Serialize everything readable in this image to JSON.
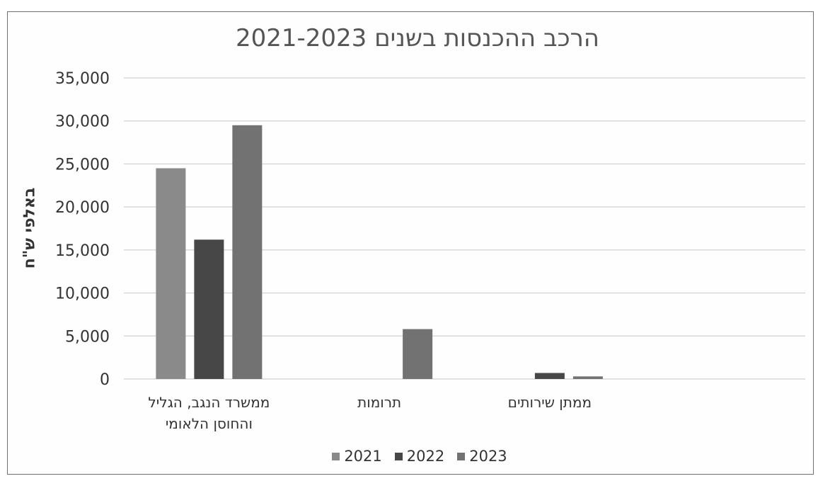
{
  "chart_data": {
    "type": "bar",
    "title": "הרכב ההכנסות בשנים 2021-2023",
    "ylabel": "באלפי ש\"ח",
    "ylim": [
      0,
      35000
    ],
    "yticks": [
      "35,000",
      "30,000",
      "25,000",
      "20,000",
      "15,000",
      "10,000",
      "5,000",
      "0"
    ],
    "grid": true,
    "legend_position": "bottom",
    "categories": [
      [
        "ממשרד הנגב, הגליל",
        "והחוסן הלאומי"
      ],
      [
        "תרומות"
      ],
      [
        "ממתן שירותים"
      ],
      [
        ""
      ]
    ],
    "series": [
      {
        "name": "2021",
        "color": "#8a8a8a",
        "values": [
          24500,
          0,
          0,
          0
        ]
      },
      {
        "name": "2022",
        "color": "#474747",
        "values": [
          16200,
          0,
          700,
          0
        ]
      },
      {
        "name": "2023",
        "color": "#727272",
        "values": [
          29500,
          5800,
          300,
          0
        ]
      }
    ]
  }
}
